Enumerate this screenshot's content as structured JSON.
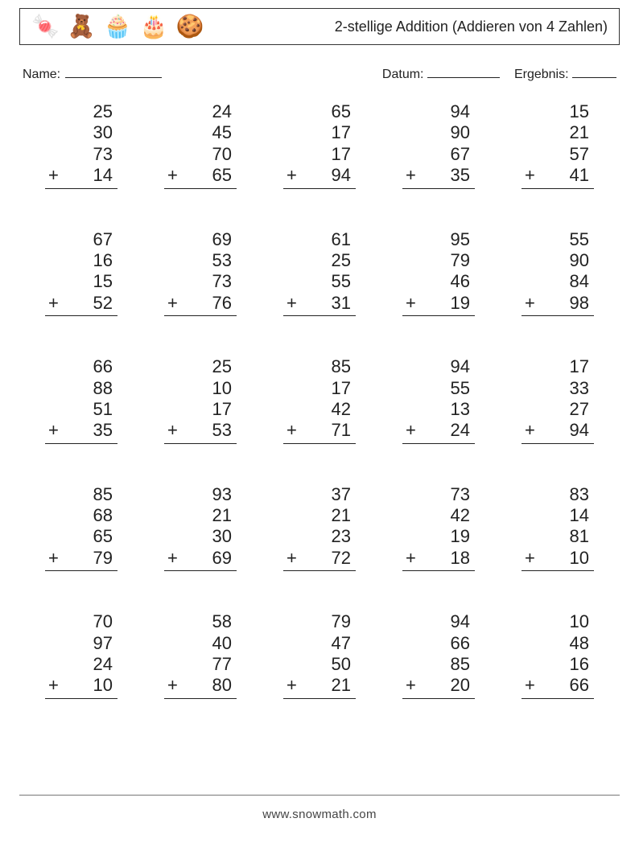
{
  "header": {
    "icons": [
      "🍬",
      "🧸",
      "🧁",
      "🎂",
      "🍪"
    ],
    "title": "2-stellige Addition (Addieren von 4 Zahlen)"
  },
  "info": {
    "name_label": "Name:",
    "date_label": "Datum:",
    "result_label": "Ergebnis:"
  },
  "style": {
    "text_color": "#222222",
    "background_color": "#ffffff",
    "border_color": "#333333",
    "font_size_title": 18,
    "font_size_problem": 22,
    "operator": "+",
    "rows": 5,
    "cols": 5
  },
  "problems": [
    [
      [
        25,
        30,
        73,
        14
      ],
      [
        24,
        45,
        70,
        65
      ],
      [
        65,
        17,
        17,
        94
      ],
      [
        94,
        90,
        67,
        35
      ],
      [
        15,
        21,
        57,
        41
      ]
    ],
    [
      [
        67,
        16,
        15,
        52
      ],
      [
        69,
        53,
        73,
        76
      ],
      [
        61,
        25,
        55,
        31
      ],
      [
        95,
        79,
        46,
        19
      ],
      [
        55,
        90,
        84,
        98
      ]
    ],
    [
      [
        66,
        88,
        51,
        35
      ],
      [
        25,
        10,
        17,
        53
      ],
      [
        85,
        17,
        42,
        71
      ],
      [
        94,
        55,
        13,
        24
      ],
      [
        17,
        33,
        27,
        94
      ]
    ],
    [
      [
        85,
        68,
        65,
        79
      ],
      [
        93,
        21,
        30,
        69
      ],
      [
        37,
        21,
        23,
        72
      ],
      [
        73,
        42,
        19,
        18
      ],
      [
        83,
        14,
        81,
        10
      ]
    ],
    [
      [
        70,
        97,
        24,
        10
      ],
      [
        58,
        40,
        77,
        80
      ],
      [
        79,
        47,
        50,
        21
      ],
      [
        94,
        66,
        85,
        20
      ],
      [
        10,
        48,
        16,
        66
      ]
    ]
  ],
  "footer": "www.snowmath.com"
}
